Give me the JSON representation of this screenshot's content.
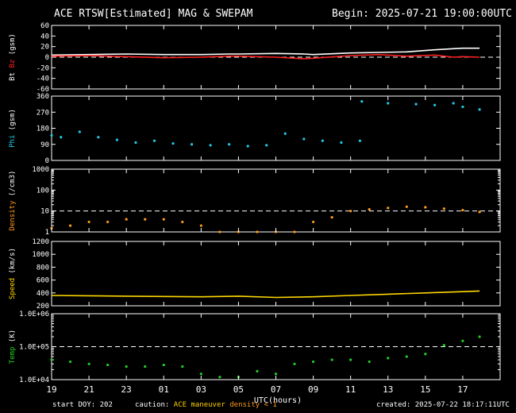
{
  "header": {
    "title": "ACE RTSW[Estimated] MAG & SWEPAM",
    "begin": "Begin: 2025-07-21 19:00:00UTC"
  },
  "footer": {
    "start": "start DOY: 202",
    "caution_label": "caution:",
    "caution_maneuver": "ACE maneuver",
    "caution_density": "density < 1",
    "created": "created: 2025-07-22 18:17:11UTC"
  },
  "colors": {
    "bt": "#ffffff",
    "bz": "#ff2020",
    "phi": "#22c8e6",
    "density": "#ff9a1c",
    "speed": "#ffd700",
    "temp": "#22d022",
    "grid": "#ffffff"
  },
  "chart_data": [
    {
      "type": "line",
      "panel": "mag",
      "ylabel_parts": [
        "Bt",
        "Bz",
        "(gsm)"
      ],
      "yticks": [
        "60",
        "40",
        "20",
        "0",
        "-20",
        "-40",
        "-60"
      ],
      "ylim": [
        -60,
        60
      ],
      "reference_lines": [
        0
      ],
      "series": [
        {
          "name": "Bt",
          "x": [
            19,
            21,
            23,
            25,
            27,
            28.5,
            29,
            31,
            32.5,
            33,
            35,
            36.5,
            38,
            39.5,
            40.5,
            41,
            41.9
          ],
          "values": [
            4,
            5,
            6,
            5,
            5,
            6,
            6,
            7,
            6,
            5,
            8,
            9,
            10,
            14,
            16,
            17,
            17
          ]
        },
        {
          "name": "Bz",
          "x": [
            19,
            21,
            23,
            25,
            27,
            28.5,
            29,
            31,
            32.5,
            33,
            35,
            36.5,
            38,
            39.5,
            40.5,
            41,
            41.9
          ],
          "values": [
            2,
            3,
            1,
            -1,
            0,
            2,
            2,
            0,
            -3,
            -2,
            3,
            5,
            2,
            4,
            0,
            1,
            0
          ]
        }
      ]
    },
    {
      "type": "scatter",
      "panel": "phi",
      "ylabel": "Phi (gsm)",
      "yticks": [
        "360",
        "270",
        "180",
        "90",
        "0"
      ],
      "ylim": [
        0,
        360
      ],
      "series": [
        {
          "name": "Phi",
          "x": [
            19,
            19.5,
            20.5,
            21.5,
            22.5,
            23.5,
            24.5,
            25.5,
            26.5,
            27.5,
            28.5,
            29.5,
            30.5,
            31.5,
            32.5,
            33.5,
            34.5,
            35.5,
            35.6,
            37,
            38.5,
            39.5,
            40.5,
            41,
            41.9
          ],
          "values": [
            140,
            130,
            160,
            130,
            115,
            100,
            110,
            95,
            90,
            85,
            90,
            80,
            85,
            150,
            120,
            110,
            100,
            110,
            330,
            320,
            315,
            310,
            320,
            300,
            285
          ]
        }
      ]
    },
    {
      "type": "scatter",
      "panel": "density",
      "ylabel": "Density (/cm3)",
      "yscale": "log",
      "yticks": [
        "1000",
        "100",
        "10",
        "1"
      ],
      "ylim": [
        1,
        1000
      ],
      "reference_lines": [
        10
      ],
      "series": [
        {
          "name": "Density",
          "x": [
            19,
            20,
            21,
            22,
            23,
            24,
            25,
            26,
            27,
            28,
            29,
            30,
            31,
            32,
            33,
            34,
            35,
            36,
            37,
            38,
            39,
            40,
            41,
            41.9
          ],
          "values": [
            1.5,
            2,
            3,
            3,
            4,
            4,
            4,
            3,
            2,
            1,
            1,
            1,
            1,
            1,
            3,
            5,
            10,
            12,
            14,
            16,
            15,
            13,
            11,
            9
          ]
        }
      ]
    },
    {
      "type": "line",
      "panel": "speed",
      "ylabel": "Speed (km/s)",
      "yticks": [
        "1200",
        "1000",
        "800",
        "600",
        "400",
        "200"
      ],
      "ylim": [
        200,
        1200
      ],
      "series": [
        {
          "name": "Speed",
          "x": [
            19,
            21,
            23,
            25,
            27,
            29,
            31,
            33,
            35,
            37,
            39,
            41,
            41.9
          ],
          "values": [
            360,
            355,
            350,
            345,
            340,
            350,
            330,
            340,
            360,
            380,
            400,
            420,
            430
          ]
        }
      ]
    },
    {
      "type": "scatter",
      "panel": "temp",
      "ylabel": "Temp (K)",
      "yscale": "log",
      "yticks": [
        "1.0E+06",
        "1.0E+05",
        "1.0E+04"
      ],
      "ylim": [
        10000,
        1000000
      ],
      "reference_lines": [
        100000
      ],
      "series": [
        {
          "name": "Temp",
          "x": [
            19,
            20,
            21,
            22,
            23,
            24,
            25,
            26,
            27,
            28,
            29,
            30,
            31,
            32,
            33,
            34,
            35,
            36,
            37,
            38,
            39,
            40,
            41,
            41.9
          ],
          "values": [
            40000,
            35000,
            30000,
            28000,
            25000,
            25000,
            28000,
            25000,
            15000,
            12000,
            12000,
            18000,
            15000,
            30000,
            35000,
            40000,
            40000,
            35000,
            45000,
            50000,
            60000,
            110000,
            150000,
            200000
          ]
        }
      ]
    }
  ],
  "x_axis": {
    "label": "UTC(hours)",
    "ticks": [
      "19",
      "21",
      "23",
      "01",
      "03",
      "05",
      "07",
      "09",
      "11",
      "13",
      "15",
      "17"
    ],
    "range": [
      19,
      43
    ]
  }
}
